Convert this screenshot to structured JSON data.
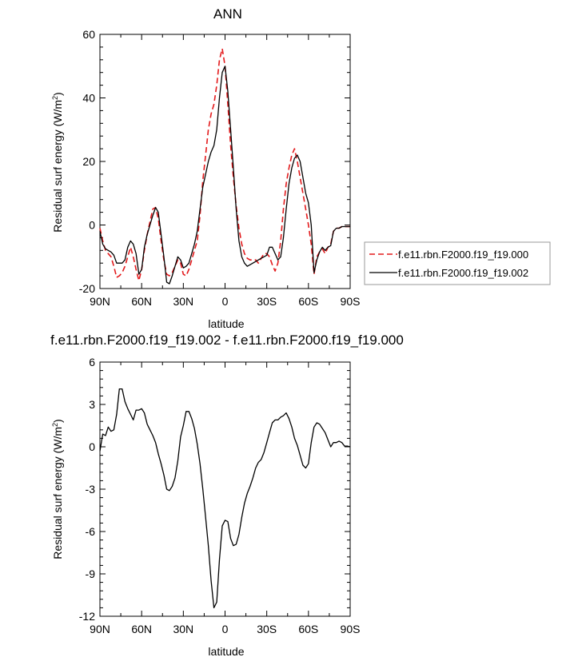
{
  "chart_data": [
    {
      "type": "line",
      "title": "ANN",
      "xlabel": "latitude",
      "ylabel": "Residual surf energy (W/m",
      "ylabel_sup": "2",
      "ylabel_close": ")",
      "xlim": [
        90,
        -90
      ],
      "ylim": [
        -20,
        60
      ],
      "x_ticks": [
        90,
        60,
        30,
        0,
        -30,
        -60,
        -90
      ],
      "x_tick_labels": [
        "90N",
        "60N",
        "30N",
        "0",
        "30S",
        "60S",
        "90S"
      ],
      "y_ticks": [
        -20,
        0,
        20,
        40,
        60
      ],
      "y_tick_labels": [
        "-20",
        "0",
        "20",
        "40",
        "60"
      ],
      "grid": false,
      "legend_position": "right, outside",
      "series": [
        {
          "name": "f.e11.rbn.F2000.f19_f19.000",
          "color": "#e31a1c",
          "style": "dashed",
          "x": [
            90,
            88,
            86,
            84,
            82,
            80,
            78,
            76,
            74,
            72,
            70,
            68,
            66,
            64,
            62,
            60,
            58,
            56,
            54,
            52,
            50,
            48,
            46,
            44,
            42,
            40,
            38,
            36,
            34,
            32,
            30,
            28,
            26,
            24,
            22,
            20,
            18,
            16,
            14,
            12,
            10,
            8,
            6,
            4,
            2,
            0,
            -2,
            -4,
            -6,
            -8,
            -10,
            -12,
            -14,
            -16,
            -18,
            -20,
            -22,
            -24,
            -26,
            -28,
            -30,
            -32,
            -34,
            -36,
            -38,
            -40,
            -42,
            -44,
            -46,
            -48,
            -50,
            -52,
            -54,
            -56,
            -58,
            -60,
            -62,
            -64,
            -66,
            -68,
            -70,
            -72,
            -74,
            -76,
            -78,
            -80,
            -82,
            -84,
            -86,
            -88,
            -90
          ],
          "values": [
            -1,
            -5,
            -8,
            -9,
            -10,
            -13,
            -16.5,
            -16,
            -15,
            -13,
            -10,
            -7,
            -10,
            -14,
            -17.5,
            -14,
            -8,
            -3,
            1,
            5,
            5.5,
            2,
            -5,
            -11,
            -15.5,
            -16,
            -15,
            -13,
            -11,
            -12,
            -15.5,
            -16,
            -14,
            -11,
            -8,
            -5,
            3,
            14,
            22,
            30,
            35,
            38,
            44,
            52,
            55.5,
            50,
            38,
            25,
            15,
            6,
            -1,
            -6,
            -9,
            -10.5,
            -11,
            -11,
            -11,
            -12,
            -10.5,
            -9,
            -9,
            -10,
            -12.5,
            -14.5,
            -12,
            -5,
            5,
            13,
            18,
            22,
            24,
            20,
            15,
            10,
            5,
            0,
            -6,
            -15.5,
            -10,
            -8.5,
            -7.5,
            -9,
            -7,
            -6,
            -2,
            -1,
            -1,
            -0.5,
            -0.5,
            -0.5,
            -0.5
          ]
        },
        {
          "name": "f.e11.rbn.F2000.f19_f19.002",
          "color": "#000000",
          "style": "solid",
          "x": [
            90,
            88,
            86,
            84,
            82,
            80,
            78,
            76,
            74,
            72,
            70,
            68,
            66,
            64,
            62,
            60,
            58,
            56,
            54,
            52,
            50,
            48,
            46,
            44,
            42,
            40,
            38,
            36,
            34,
            32,
            30,
            28,
            26,
            24,
            22,
            20,
            18,
            16,
            14,
            12,
            10,
            8,
            6,
            4,
            2,
            0,
            -2,
            -4,
            -6,
            -8,
            -10,
            -12,
            -14,
            -16,
            -18,
            -20,
            -22,
            -24,
            -26,
            -28,
            -30,
            -32,
            -34,
            -36,
            -38,
            -40,
            -42,
            -44,
            -46,
            -48,
            -50,
            -52,
            -54,
            -56,
            -58,
            -60,
            -62,
            -64,
            -66,
            -68,
            -70,
            -72,
            -74,
            -76,
            -78,
            -80,
            -82,
            -84,
            -86,
            -88,
            -90
          ],
          "values": [
            -2,
            -6,
            -7.5,
            -8,
            -8.5,
            -9.5,
            -12,
            -12,
            -12,
            -11,
            -7,
            -5,
            -6,
            -9,
            -15.5,
            -14,
            -7,
            -3,
            0,
            3,
            5.5,
            4,
            -3,
            -10,
            -18,
            -18.5,
            -16,
            -13,
            -10,
            -11,
            -13.5,
            -13,
            -12,
            -9,
            -6,
            -2,
            5,
            12,
            16,
            20,
            23,
            25,
            30,
            40,
            48,
            50,
            42,
            30,
            18,
            5,
            -5,
            -10,
            -12,
            -13,
            -12.5,
            -12,
            -11.5,
            -11,
            -10.5,
            -10,
            -9.5,
            -7,
            -7,
            -9,
            -11,
            -10,
            -4,
            5,
            13,
            18,
            21,
            22,
            20,
            15,
            10,
            7,
            0,
            -15,
            -11,
            -8.5,
            -7,
            -8,
            -7,
            -6.5,
            -2,
            -1,
            -1,
            -0.5,
            -0.5,
            -0.5,
            -0.5
          ]
        }
      ]
    },
    {
      "type": "line",
      "title": "f.e11.rbn.F2000.f19_f19.002 - f.e11.rbn.F2000.f19_f19.000",
      "xlabel": "latitude",
      "ylabel": "Residual surf energy (W/m",
      "ylabel_sup": "2",
      "ylabel_close": ")",
      "xlim": [
        90,
        -90
      ],
      "ylim": [
        -12,
        6
      ],
      "x_ticks": [
        90,
        60,
        30,
        0,
        -30,
        -60,
        -90
      ],
      "x_tick_labels": [
        "90N",
        "60N",
        "30N",
        "0",
        "30S",
        "60S",
        "90S"
      ],
      "y_ticks": [
        -12,
        -9,
        -6,
        -3,
        0,
        3,
        6
      ],
      "y_tick_labels": [
        "-12",
        "-9",
        "-6",
        "-3",
        "0",
        "3",
        "6"
      ],
      "grid": false,
      "series": [
        {
          "color": "#000000",
          "style": "solid",
          "x": [
            90,
            88,
            86,
            84,
            82,
            80,
            78,
            76,
            74,
            72,
            70,
            68,
            66,
            64,
            62,
            60,
            58,
            56,
            54,
            52,
            50,
            48,
            46,
            44,
            42,
            40,
            38,
            36,
            34,
            32,
            30,
            28,
            26,
            24,
            22,
            20,
            18,
            16,
            14,
            12,
            10,
            8,
            6,
            4,
            2,
            0,
            -2,
            -4,
            -6,
            -8,
            -10,
            -12,
            -14,
            -16,
            -18,
            -20,
            -22,
            -24,
            -26,
            -28,
            -30,
            -32,
            -34,
            -36,
            -38,
            -40,
            -42,
            -44,
            -46,
            -48,
            -50,
            -52,
            -54,
            -56,
            -58,
            -60,
            -62,
            -64,
            -66,
            -68,
            -70,
            -72,
            -74,
            -76,
            -78,
            -80,
            -82,
            -84,
            -86,
            -88,
            -90
          ],
          "values": [
            -0.3,
            0.9,
            0.8,
            1.4,
            1.1,
            1.2,
            2.3,
            4.1,
            4.1,
            3.2,
            2.7,
            2.3,
            1.9,
            2.6,
            2.6,
            2.7,
            2.4,
            1.6,
            1.2,
            0.8,
            0.3,
            -0.5,
            -1.2,
            -2.0,
            -3.0,
            -3.1,
            -2.8,
            -2.2,
            -1.0,
            0.7,
            1.5,
            2.5,
            2.5,
            2.0,
            1.3,
            0.2,
            -1.2,
            -3.0,
            -5.0,
            -7.0,
            -9.5,
            -11.4,
            -11.0,
            -8.0,
            -5.6,
            -5.2,
            -5.3,
            -6.5,
            -7.0,
            -6.9,
            -6.2,
            -5.0,
            -4.0,
            -3.3,
            -2.8,
            -2.2,
            -1.5,
            -1.1,
            -0.9,
            -0.4,
            0.3,
            1.0,
            1.7,
            1.9,
            1.9,
            2.1,
            2.2,
            2.4,
            2.0,
            1.4,
            0.6,
            0.1,
            -0.6,
            -1.3,
            -1.5,
            -1.2,
            0.3,
            1.4,
            1.7,
            1.6,
            1.3,
            1.0,
            0.5,
            0.0,
            0.3,
            0.3,
            0.4,
            0.3,
            0.05,
            0.05,
            0.0
          ]
        }
      ]
    }
  ]
}
